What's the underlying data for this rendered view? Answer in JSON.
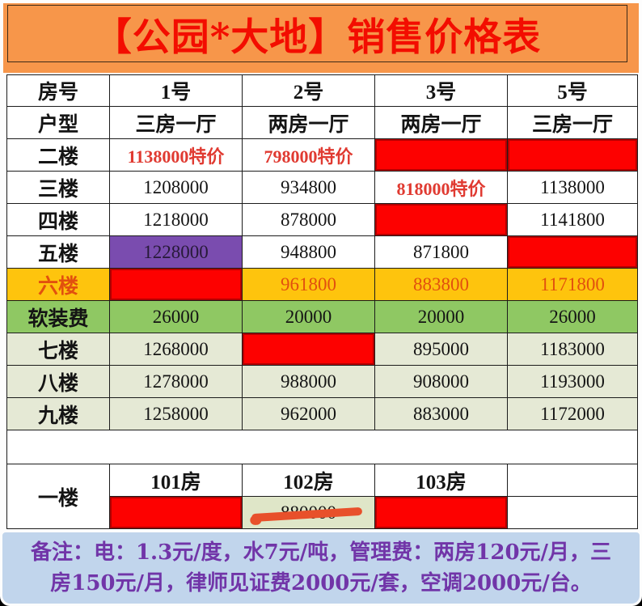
{
  "banner": {
    "title": "【公园*大地】销售价格表"
  },
  "palette": {
    "banner_bg": "#f7964a",
    "title_red": "#f30d00",
    "border": "#1c1c1c",
    "red_fill": "#fd0100",
    "red_text": "#e03a31",
    "purple_fill": "#7a4caf",
    "purple_text": "#271a38",
    "yellow_fill": "#fec40d",
    "orange_text": "#e2500e",
    "green_fill": "#8fc863",
    "lightgreen_fill": "#e5e9d5",
    "strike_bg": "#dfe6c8",
    "marker": "#e8502b",
    "note_bg": "#c1d5ec",
    "note_text": "#7135a8"
  },
  "table": {
    "header": [
      "房号",
      "1号",
      "2号",
      "3号",
      "5号"
    ],
    "unit_row": [
      "户型",
      "三房一厅",
      "两房一厅",
      "两房一厅",
      "三房一厅"
    ],
    "rows": [
      {
        "label": "二楼",
        "label_style": "w",
        "cells": [
          {
            "text": "1138000特价",
            "style": "sp"
          },
          {
            "text": "798000特价",
            "style": "sp"
          },
          {
            "text": "",
            "style": "rf"
          },
          {
            "text": "",
            "style": "rf"
          }
        ]
      },
      {
        "label": "三楼",
        "label_style": "w",
        "cells": [
          {
            "text": "1208000",
            "style": "w"
          },
          {
            "text": "934800",
            "style": "w"
          },
          {
            "text": "818000特价",
            "style": "sp"
          },
          {
            "text": "1138000",
            "style": "w"
          }
        ]
      },
      {
        "label": "四楼",
        "label_style": "w",
        "cells": [
          {
            "text": "1218000",
            "style": "w"
          },
          {
            "text": "878000",
            "style": "w"
          },
          {
            "text": "",
            "style": "rf"
          },
          {
            "text": "1141800",
            "style": "w"
          }
        ]
      },
      {
        "label": "五楼",
        "label_style": "w",
        "cells": [
          {
            "text": "1228000",
            "style": "pf"
          },
          {
            "text": "948800",
            "style": "w"
          },
          {
            "text": "871800",
            "style": "w"
          },
          {
            "text": "",
            "style": "rf"
          }
        ]
      },
      {
        "label": "六楼",
        "label_style": "yl",
        "cells": [
          {
            "text": "",
            "style": "rf"
          },
          {
            "text": "961800",
            "style": "yn"
          },
          {
            "text": "883800",
            "style": "yn"
          },
          {
            "text": "1171800",
            "style": "yn"
          }
        ]
      },
      {
        "label": "软装费",
        "label_style": "gr",
        "cells": [
          {
            "text": "26000",
            "style": "gr"
          },
          {
            "text": "20000",
            "style": "gr"
          },
          {
            "text": "20000",
            "style": "gr"
          },
          {
            "text": "26000",
            "style": "gr"
          }
        ]
      },
      {
        "label": "七楼",
        "label_style": "lg",
        "cells": [
          {
            "text": "1268000",
            "style": "lg"
          },
          {
            "text": "",
            "style": "rf"
          },
          {
            "text": "895000",
            "style": "lg"
          },
          {
            "text": "1183000",
            "style": "lg"
          }
        ]
      },
      {
        "label": "八楼",
        "label_style": "lg",
        "cells": [
          {
            "text": "1278000",
            "style": "lg"
          },
          {
            "text": "988000",
            "style": "lg"
          },
          {
            "text": "908000",
            "style": "lg"
          },
          {
            "text": "1193000",
            "style": "lg"
          }
        ]
      },
      {
        "label": "九楼",
        "label_style": "lg",
        "cells": [
          {
            "text": "1258000",
            "style": "lg"
          },
          {
            "text": "962000",
            "style": "lg"
          },
          {
            "text": "883000",
            "style": "lg"
          },
          {
            "text": "1172000",
            "style": "lg"
          }
        ]
      }
    ]
  },
  "ground_floor": {
    "label": "一楼",
    "room_headers": [
      "101房",
      "102房",
      "103房",
      ""
    ],
    "price_cells": [
      {
        "text": "",
        "style": "rf",
        "strike": false
      },
      {
        "text": "880000",
        "style": "st",
        "strike": true
      },
      {
        "text": "",
        "style": "rf",
        "strike": false
      },
      {
        "text": "",
        "style": "w",
        "strike": false
      }
    ]
  },
  "note": {
    "lines": [
      "备注：电：1.3元/度，水7元/吨，管理费：两房120元/月，三",
      "房150元/月，律师见证费2000元/套，空调2000元/台。"
    ]
  }
}
